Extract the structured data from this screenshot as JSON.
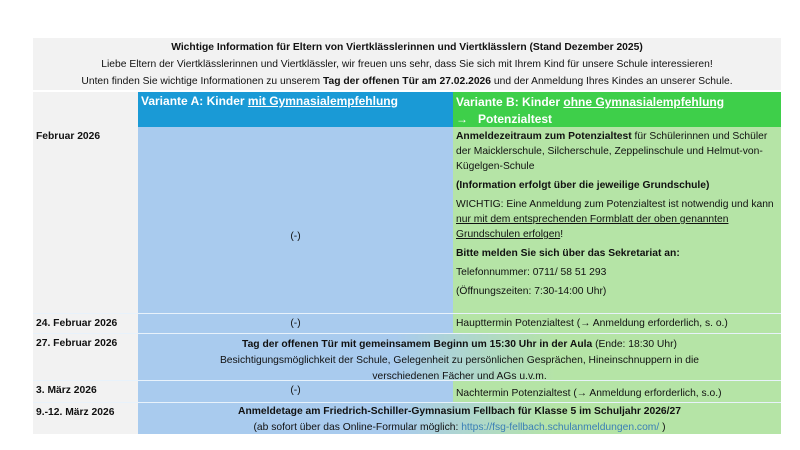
{
  "intro": {
    "title": "Wichtige Information für Eltern von Viertklässlerinnen und Viertklässlern (Stand Dezember 2025)",
    "line1": "Liebe Eltern der Viertklässlerinnen und Viertklässler, wir freuen uns sehr, dass Sie sich mit Ihrem Kind für unsere Schule interessieren!",
    "line2_pre": "Unten finden Sie wichtige Informationen zu unserem ",
    "line2_bold": "Tag der offenen Tür am 27.02.2026",
    "line2_post": "  und der Anmeldung Ihres Kindes an unserer Schule."
  },
  "header": {
    "a_pre": "Variante A: Kinder ",
    "a_u": "mit Gymnasialempfehlung",
    "b_pre": "Variante B: Kinder ",
    "b_u": "ohne Gymnasialempfehlung",
    "b_arrow": "→",
    "b_line2": "Potenzialtest"
  },
  "rows": {
    "feb": {
      "date": "Februar 2026",
      "a": "(-)",
      "b1_bold": "Anmeldezeitraum zum Potenzialtest",
      "b1": " für Schülerinnen und Schüler der Maicklerschule, Silcherschule, Zeppelinschule und Helmut-von-Kügelgen-Schule",
      "b2": "(Information erfolgt über die jeweilige Grundschule)",
      "b3_pre": "WICHTIG: Eine Anmeldung zum Potenzialtest ist notwendig und kann ",
      "b3_u1": "nur mit dem entsprechenden Formblatt der oben genannten",
      "b3_sp": " ",
      "b3_u2": "Grundschulen erfolgen",
      "b3_post": "!",
      "b4": "Bitte melden Sie sich über das Sekretariat an:",
      "b5": "Telefonnummer: 0711/ 58 51 293",
      "b6": "(Öffnungszeiten: 7:30-14:00 Uhr)"
    },
    "feb24": {
      "date": "24. Februar 2026",
      "a": "(-)",
      "b": "Haupttermin Potenzialtest (→ Anmeldung erforderlich, s. o.)"
    },
    "feb27": {
      "date": "27. Februar 2026",
      "bold": "Tag der offenen Tür mit gemeinsamem Beginn um 15:30 Uhr in der Aula",
      "post": " (Ende: 18:30 Uhr)",
      "line2": "Besichtigungsmöglichkeit der Schule, Gelegenheit zu persönlichen Gesprächen, Hineinschnuppern in die verschiedenen Fächer und AGs u.v.m."
    },
    "mar3": {
      "date": "3. März 2026",
      "a": "(-)",
      "b": "Nachtermin Potenzialtest (→ Anmeldung erforderlich, s.o.)"
    },
    "mar9": {
      "date": "9.-12. März 2026",
      "bold": "Anmeldetage am Friedrich-Schiller-Gymnasium Fellbach für Klasse 5 im Schuljahr 2026/27",
      "pre": "(ab sofort über das Online-Formular möglich: ",
      "link": "https://fsg-fellbach.schulanmeldungen.com/",
      "post": " )"
    }
  }
}
